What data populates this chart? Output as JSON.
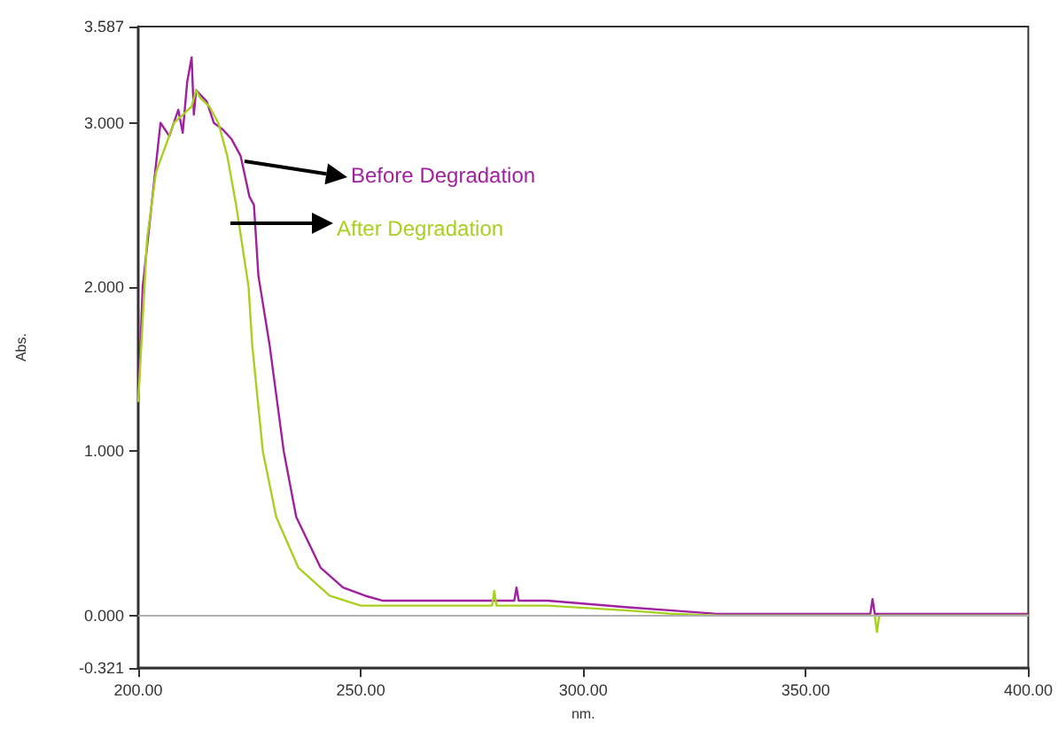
{
  "chart_data": {
    "type": "line",
    "xlabel": "nm.",
    "ylabel": "Abs.",
    "xlim": [
      200,
      400
    ],
    "xticks": [
      {
        "value": 200,
        "label": "200.00"
      },
      {
        "value": 250,
        "label": "250.00"
      },
      {
        "value": 300,
        "label": "300.00"
      },
      {
        "value": 350,
        "label": "350.00"
      },
      {
        "value": 400,
        "label": "400.00"
      }
    ],
    "ylim": [
      -0.321,
      3.587
    ],
    "yticks": [
      {
        "value": -0.321,
        "label": "-0.321"
      },
      {
        "value": 0,
        "label": "0.000"
      },
      {
        "value": 1,
        "label": "1.000"
      },
      {
        "value": 2,
        "label": "2.000"
      },
      {
        "value": 3,
        "label": "3.000"
      },
      {
        "value": 3.587,
        "label": "3.587"
      }
    ],
    "grid": false,
    "legend": false,
    "marker": "none",
    "line_style": "solid",
    "ref_lines": [
      {
        "axis": "y",
        "value": 0,
        "label": null,
        "color": "#b0b0b0"
      }
    ],
    "series": [
      {
        "name": "Before Degradation",
        "color": "#a020a0",
        "x": [
          200,
          201,
          203,
          205,
          207,
          209,
          210,
          211,
          212,
          212.5,
          213,
          215.4,
          217,
          219,
          221,
          223,
          225,
          226,
          227,
          229.5,
          232.7,
          235.5,
          241,
          246,
          251,
          255,
          270,
          284.5,
          285,
          285.5,
          292,
          310,
          320,
          330,
          340,
          364.5,
          365,
          365.5,
          370,
          380,
          400
        ],
        "values": [
          1.3,
          2.0,
          2.5,
          3.0,
          2.92,
          3.08,
          2.94,
          3.25,
          3.4,
          3.05,
          3.2,
          3.13,
          3.0,
          2.96,
          2.9,
          2.8,
          2.55,
          2.5,
          2.07,
          1.65,
          1.0,
          0.6,
          0.29,
          0.17,
          0.12,
          0.09,
          0.09,
          0.09,
          0.17,
          0.09,
          0.09,
          0.05,
          0.03,
          0.01,
          0.01,
          0.01,
          0.1,
          0.01,
          0.01,
          0.01,
          0.01
        ]
      },
      {
        "name": "After Degradation",
        "color": "#a8d020",
        "x": [
          200,
          202,
          204,
          206,
          208,
          210,
          212,
          213,
          214,
          216,
          218,
          220,
          222,
          224.8,
          225.6,
          228,
          231,
          236,
          243,
          250,
          270,
          279.5,
          280,
          280.5,
          292,
          310,
          320,
          330,
          340,
          365.5,
          366,
          366.5,
          380,
          400
        ],
        "values": [
          1.3,
          2.3,
          2.7,
          2.85,
          3.0,
          3.05,
          3.1,
          3.2,
          3.15,
          3.1,
          3.0,
          2.8,
          2.5,
          2.0,
          1.65,
          1.0,
          0.6,
          0.29,
          0.12,
          0.06,
          0.06,
          0.06,
          0.15,
          0.06,
          0.06,
          0.03,
          0.01,
          0.0,
          0.0,
          0.0,
          -0.1,
          0.0,
          0.0,
          0.0
        ]
      }
    ]
  }
}
